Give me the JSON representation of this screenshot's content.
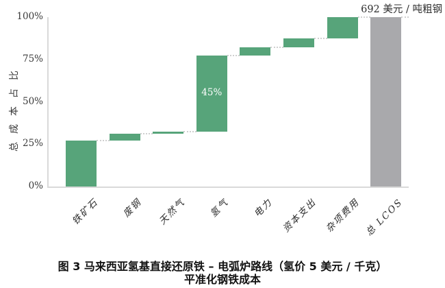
{
  "figure": {
    "annotation": "692 美元 / 吨粗钢",
    "caption": {
      "line1": "图 3  马来西亚氢基直接还原铁 – 电弧炉路线（氢价 5 美元 / 千克）",
      "line2": "平准化钢铁成本"
    }
  },
  "chart_data": {
    "type": "bar",
    "subtype": "waterfall",
    "title": "图 3 马来西亚氢基直接还原铁 – 电弧炉路线（氢价 5 美元 / 千克）平准化钢铁成本",
    "ylabel": "总成本占比",
    "xlabel": "",
    "ylim": [
      0,
      100
    ],
    "grid": false,
    "legend": "none",
    "annotation": "692 美元 / 吨粗钢",
    "yticks": [
      {
        "value": 0,
        "label": "0%"
      },
      {
        "value": 25,
        "label": "25%"
      },
      {
        "value": 50,
        "label": "50%"
      },
      {
        "value": 75,
        "label": "75%"
      },
      {
        "value": 100,
        "label": "100%"
      }
    ],
    "categories": [
      "铁矿石",
      "废钢",
      "天然气",
      "氢气",
      "电力",
      "资本支出",
      "杂项费用",
      "总 LCOS"
    ],
    "bars": [
      {
        "name": "iron-ore",
        "label": "铁矿石",
        "start": 0,
        "end": 27,
        "value": 27,
        "kind": "step",
        "data_label": ""
      },
      {
        "name": "scrap-steel",
        "label": "废钢",
        "start": 27,
        "end": 31,
        "value": 4,
        "kind": "step",
        "data_label": ""
      },
      {
        "name": "natural-gas",
        "label": "天然气",
        "start": 31,
        "end": 32.5,
        "value": 1.5,
        "kind": "step",
        "data_label": ""
      },
      {
        "name": "hydrogen",
        "label": "氢气",
        "start": 32.5,
        "end": 77.5,
        "value": 45,
        "kind": "step",
        "data_label": "45%"
      },
      {
        "name": "electricity",
        "label": "电力",
        "start": 77.5,
        "end": 82,
        "value": 4.5,
        "kind": "step",
        "data_label": ""
      },
      {
        "name": "capex",
        "label": "资本支出",
        "start": 82,
        "end": 87.5,
        "value": 5.5,
        "kind": "step",
        "data_label": ""
      },
      {
        "name": "misc-costs",
        "label": "杂项费用",
        "start": 87.5,
        "end": 100,
        "value": 12.5,
        "kind": "step",
        "data_label": ""
      },
      {
        "name": "total-lcos",
        "label": "总 LCOS",
        "start": 0,
        "end": 100,
        "value": 100,
        "kind": "total",
        "data_label": ""
      }
    ],
    "colors": {
      "step": "#57a47a",
      "total": "#a9a9ac",
      "connector": "#cfcfcf",
      "axis": "#d9d9d9",
      "bar_label_text": "#ffffff",
      "tick_text": "#3a3a3a",
      "caption_text": "#111111"
    }
  }
}
